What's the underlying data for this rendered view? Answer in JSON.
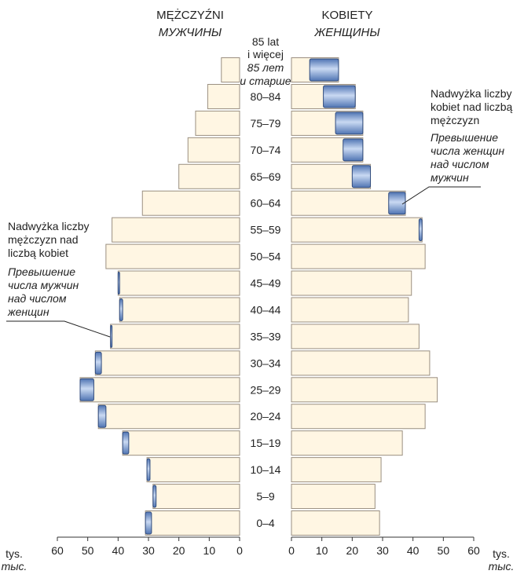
{
  "chart_data": {
    "type": "bar",
    "layout": "population-pyramid",
    "title_male": "MĘŻCZYŹNI",
    "title_male_ru": "МУЖЧИНЫ",
    "title_female": "KOBIETY",
    "title_female_ru": "ЖЕНЩИНЫ",
    "unit_left": "tys.",
    "unit_left_ru": "тыс.",
    "unit_right": "tys.",
    "unit_right_ru": "тыс.",
    "top_group_label": [
      "85 lat",
      "i więcej",
      "85 лет",
      "и старше"
    ],
    "categories": [
      "0–4",
      "5–9",
      "10–14",
      "15–19",
      "20–24",
      "25–29",
      "30–34",
      "35–39",
      "40–44",
      "45–49",
      "50–54",
      "55–59",
      "60–64",
      "65–69",
      "70–74",
      "75–79",
      "80–84",
      "85+"
    ],
    "series": [
      {
        "name": "MĘŻCZYŹNI",
        "values": [
          31.0,
          28.5,
          30.5,
          38.5,
          46.5,
          52.5,
          47.5,
          42.5,
          39.5,
          40.0,
          44.0,
          42.0,
          32.0,
          20.0,
          17.0,
          14.5,
          10.5,
          6.0
        ]
      },
      {
        "name": "KOBIETY",
        "values": [
          29.0,
          27.5,
          29.5,
          36.5,
          44.0,
          48.0,
          45.5,
          42.0,
          38.5,
          39.5,
          44.0,
          43.0,
          37.5,
          26.0,
          23.5,
          23.5,
          21.0,
          15.5
        ]
      }
    ],
    "excess_female": [
      0,
      0,
      0,
      0,
      0,
      0,
      0,
      0,
      0,
      0,
      0,
      1.0,
      5.5,
      6.0,
      6.5,
      9.0,
      10.5,
      9.5
    ],
    "excess_male": [
      2.0,
      1.0,
      1.0,
      2.0,
      2.5,
      4.5,
      2.0,
      0.5,
      1.0,
      0.5,
      0,
      0,
      0,
      0,
      0,
      0,
      0,
      0
    ],
    "xlim": [
      0,
      60
    ],
    "ticks": [
      0,
      10,
      20,
      30,
      40,
      50,
      60
    ],
    "annotation_female": [
      "Nadwyżka liczby",
      "kobiet nad liczbą",
      "mężczyzn",
      "Превышение",
      "числа женщин",
      "над числом",
      "мужчин"
    ],
    "annotation_male": [
      "Nadwyżka liczby",
      "mężczyzn nad",
      "liczbą kobiet",
      "Превышение",
      "числа мужчин",
      "над числом",
      "женщин"
    ],
    "colors": {
      "bar_fill": "#fff6e3",
      "bar_stroke": "#9a8f80",
      "excess_fill": "#6f94cf",
      "excess_stroke": "#2f4a7c"
    }
  }
}
